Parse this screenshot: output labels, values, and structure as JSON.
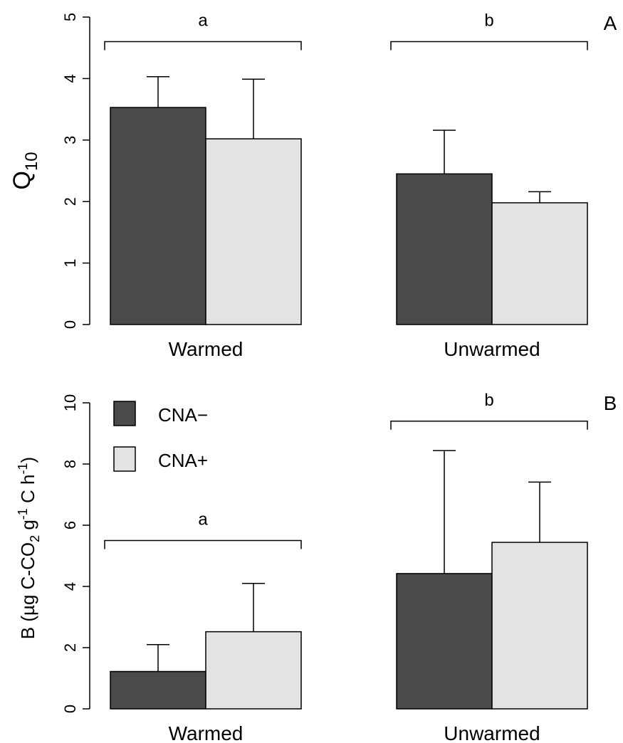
{
  "chart_data": [
    {
      "type": "bar",
      "panel_label": "A",
      "ylabel_main": "Q",
      "ylabel_sub": "10",
      "ylim": [
        0,
        5
      ],
      "yticks": [
        "0",
        "1",
        "2",
        "3",
        "4",
        "5"
      ],
      "groups": [
        "Warmed",
        "Unwarmed"
      ],
      "series": [
        {
          "name": "CNA−",
          "color": "#4a4a4a",
          "values": [
            3.53,
            2.45
          ],
          "errors": [
            0.5,
            0.71
          ]
        },
        {
          "name": "CNA+",
          "color": "#e3e3e3",
          "values": [
            3.02,
            1.98
          ],
          "errors": [
            0.97,
            0.18
          ]
        }
      ],
      "significance": [
        {
          "group": 0,
          "letter": "a",
          "height": 4.6
        },
        {
          "group": 1,
          "letter": "b",
          "height": 4.6
        }
      ],
      "legend": false
    },
    {
      "type": "bar",
      "panel_label": "B",
      "ylabel_main": "B (µg C-CO",
      "ylabel_sub": "2",
      "ylabel_mid": " g",
      "ylabel_sup1": "-1",
      "ylabel_mid2": " C h",
      "ylabel_sup2": "-1",
      "ylabel_end": ")",
      "ylim": [
        0,
        10
      ],
      "yticks": [
        "0",
        "2",
        "4",
        "6",
        "8",
        "10"
      ],
      "groups": [
        "Warmed",
        "Unwarmed"
      ],
      "series": [
        {
          "name": "CNA−",
          "color": "#4a4a4a",
          "values": [
            1.22,
            4.42
          ],
          "errors": [
            0.88,
            4.02
          ]
        },
        {
          "name": "CNA+",
          "color": "#e3e3e3",
          "values": [
            2.52,
            5.44
          ],
          "errors": [
            1.58,
            1.97
          ]
        }
      ],
      "significance": [
        {
          "group": 0,
          "letter": "a",
          "height": 5.5
        },
        {
          "group": 1,
          "letter": "b",
          "height": 9.4
        }
      ],
      "legend": true,
      "legend_position": "top-left"
    }
  ]
}
